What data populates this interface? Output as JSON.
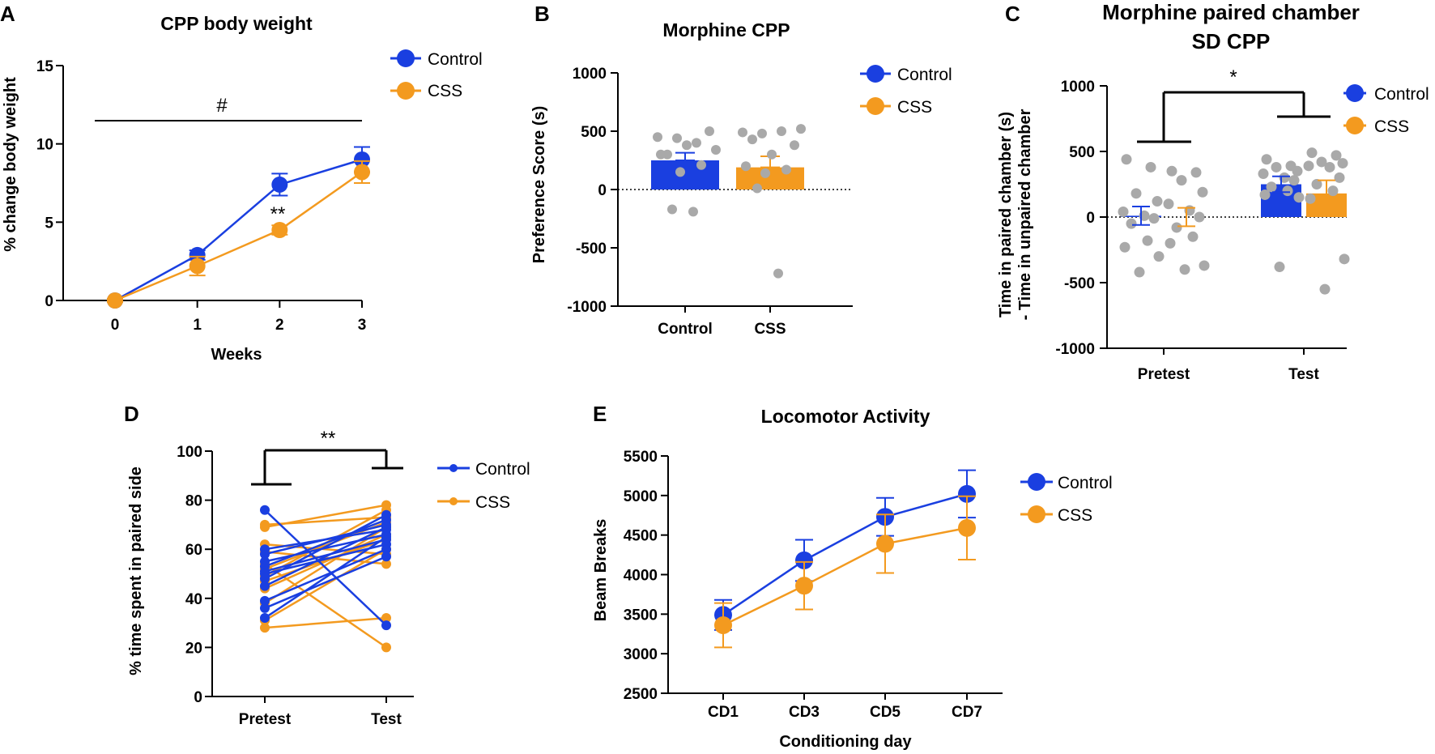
{
  "colors": {
    "control": "#1a3fe0",
    "css": "#f39a1f",
    "points": "#a9a9a9",
    "axis": "#000000"
  },
  "chart_data": [
    {
      "id": "A",
      "type": "line",
      "panel_letter": "A",
      "title": "CPP body weight",
      "xlabel": "Weeks",
      "ylabel": "% change body weight",
      "x": [
        0,
        1,
        2,
        3
      ],
      "xticks": [
        "0",
        "1",
        "2",
        "3"
      ],
      "ylim": [
        0,
        15
      ],
      "yticks": [
        "0",
        "5",
        "10",
        "15"
      ],
      "series": [
        {
          "name": "Control",
          "values": [
            0,
            2.9,
            7.4,
            9.0
          ],
          "errors": [
            0.1,
            0.3,
            0.7,
            0.8
          ]
        },
        {
          "name": "CSS",
          "values": [
            0,
            2.2,
            4.5,
            8.2
          ],
          "errors": [
            0.1,
            0.6,
            0.3,
            0.7
          ]
        }
      ],
      "annotations": {
        "hash": "#",
        "stars": "**"
      },
      "legend": "top-right"
    },
    {
      "id": "B",
      "type": "bar",
      "panel_letter": "B",
      "title": "Morphine CPP",
      "ylabel": "Preference Score (s)",
      "categories": [
        "Control",
        "CSS"
      ],
      "ylim": [
        -1000,
        1000
      ],
      "yticks": [
        "1000",
        "500",
        "0",
        "-500",
        "-1000"
      ],
      "series": [
        {
          "name": "Control",
          "mean": 250,
          "error": 65,
          "points": [
            450,
            440,
            400,
            340,
            300,
            500,
            380,
            300,
            210,
            150,
            -170,
            -190
          ]
        },
        {
          "name": "CSS",
          "mean": 190,
          "error": 95,
          "points": [
            490,
            480,
            500,
            520,
            430,
            380,
            300,
            200,
            170,
            140,
            10,
            -720
          ]
        }
      ],
      "legend": "top-right"
    },
    {
      "id": "C",
      "type": "bar",
      "panel_letter": "C",
      "title": "Morphine paired chamber",
      "subtitle": "SD CPP",
      "ylabel_lines": [
        "Time in paired chamber (s)",
        "- Time in unpaired chamber"
      ],
      "categories": [
        "Pretest",
        "Test"
      ],
      "ylim": [
        -1000,
        1000
      ],
      "yticks": [
        "1000",
        "500",
        "0",
        "-500",
        "-1000"
      ],
      "series": [
        {
          "name": "Control",
          "means": [
            10,
            250
          ],
          "errors": [
            70,
            60
          ],
          "points": [
            [
              440,
              380,
              180,
              120,
              40,
              10,
              -10,
              -50,
              -180,
              -230,
              -300,
              -420
            ],
            [
              440,
              390,
              380,
              350,
              330,
              300,
              280,
              230,
              200,
              170,
              150,
              -380
            ]
          ]
        },
        {
          "name": "CSS",
          "means": [
            0,
            180
          ],
          "errors": [
            70,
            100
          ],
          "points": [
            [
              350,
              340,
              280,
              190,
              100,
              50,
              0,
              -80,
              -150,
              -200,
              -370,
              -400
            ],
            [
              490,
              470,
              420,
              410,
              390,
              380,
              300,
              250,
              200,
              140,
              -320,
              -550
            ]
          ]
        }
      ],
      "annotations": {
        "star": "*"
      },
      "legend": "top-right"
    },
    {
      "id": "D",
      "type": "line",
      "panel_letter": "D",
      "ylabel": "% time spent in paired side",
      "categories": [
        "Pretest",
        "Test"
      ],
      "ylim": [
        0,
        100
      ],
      "yticks": [
        "0",
        "20",
        "40",
        "60",
        "80",
        "100"
      ],
      "series": [
        {
          "name": "Control",
          "pairs": [
            [
              76,
              29
            ],
            [
              60,
              68
            ],
            [
              58,
              70
            ],
            [
              55,
              66
            ],
            [
              53,
              72
            ],
            [
              51,
              64
            ],
            [
              50,
              62
            ],
            [
              48,
              74
            ],
            [
              45,
              69
            ],
            [
              39,
              60
            ],
            [
              36,
              57
            ],
            [
              32,
              65
            ]
          ]
        },
        {
          "name": "CSS",
          "pairs": [
            [
              70,
              73
            ],
            [
              69,
              78
            ],
            [
              62,
              58
            ],
            [
              59,
              54
            ],
            [
              54,
              20
            ],
            [
              52,
              71
            ],
            [
              49,
              76
            ],
            [
              47,
              64
            ],
            [
              44,
              66
            ],
            [
              38,
              69
            ],
            [
              31,
              60
            ],
            [
              28,
              32
            ]
          ]
        }
      ],
      "annotations": {
        "stars": "**"
      },
      "legend": "top-right"
    },
    {
      "id": "E",
      "type": "line",
      "panel_letter": "E",
      "title": "Locomotor Activity",
      "xlabel": "Conditioning day",
      "ylabel": "Beam Breaks",
      "categories": [
        "CD1",
        "CD3",
        "CD5",
        "CD7"
      ],
      "ylim": [
        2500,
        5500
      ],
      "yticks": [
        "2500",
        "3000",
        "3500",
        "4000",
        "4500",
        "5000",
        "5500"
      ],
      "series": [
        {
          "name": "Control",
          "values": [
            3490,
            4180,
            4730,
            5020
          ],
          "errors": [
            190,
            260,
            240,
            300
          ]
        },
        {
          "name": "CSS",
          "values": [
            3360,
            3860,
            4390,
            4590
          ],
          "errors": [
            280,
            300,
            370,
            400
          ]
        }
      ],
      "legend": "top-right"
    }
  ]
}
